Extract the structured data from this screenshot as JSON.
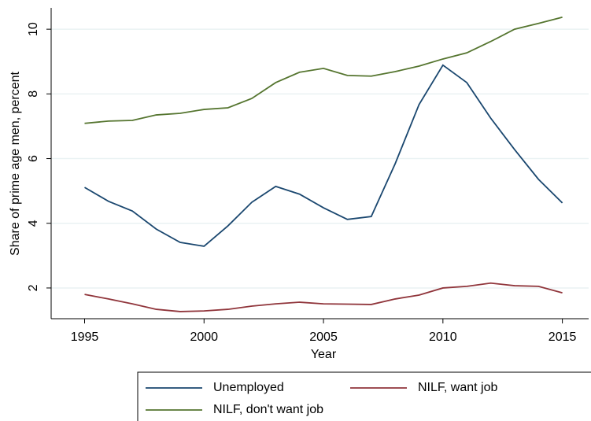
{
  "chart_data": {
    "type": "line",
    "x_label": "Year",
    "y_label": "Share of prime age men, percent",
    "x": [
      1995,
      1996,
      1997,
      1998,
      1999,
      2000,
      2001,
      2002,
      2003,
      2004,
      2005,
      2006,
      2007,
      2008,
      2009,
      2010,
      2011,
      2012,
      2013,
      2014,
      2015
    ],
    "series": [
      {
        "name": "Unemployed",
        "color": "#1a476f",
        "values": [
          5.11,
          4.68,
          4.38,
          3.82,
          3.41,
          3.29,
          3.92,
          4.65,
          5.14,
          4.9,
          4.48,
          4.12,
          4.21,
          5.84,
          7.67,
          8.89,
          8.35,
          7.25,
          6.28,
          5.36,
          4.63
        ]
      },
      {
        "name": "NILF, want job",
        "color": "#90353b",
        "values": [
          1.8,
          1.66,
          1.51,
          1.34,
          1.27,
          1.29,
          1.34,
          1.44,
          1.51,
          1.56,
          1.51,
          1.5,
          1.49,
          1.66,
          1.78,
          2.0,
          2.05,
          2.15,
          2.07,
          2.05,
          1.85
        ]
      },
      {
        "name": "NILF, don't want job",
        "color": "#55752f",
        "values": [
          7.09,
          7.16,
          7.18,
          7.35,
          7.4,
          7.52,
          7.57,
          7.86,
          8.35,
          8.67,
          8.79,
          8.57,
          8.55,
          8.69,
          8.86,
          9.08,
          9.27,
          9.62,
          10.0,
          10.18,
          10.37
        ]
      }
    ],
    "xlim": [
      1993.6,
      2016.1
    ],
    "xticks": [
      1995,
      2000,
      2005,
      2010,
      2015
    ],
    "ylim": [
      1.05,
      10.66
    ],
    "yticks": [
      2,
      4,
      6,
      8,
      10
    ],
    "grid": true,
    "legend": "bottom"
  }
}
